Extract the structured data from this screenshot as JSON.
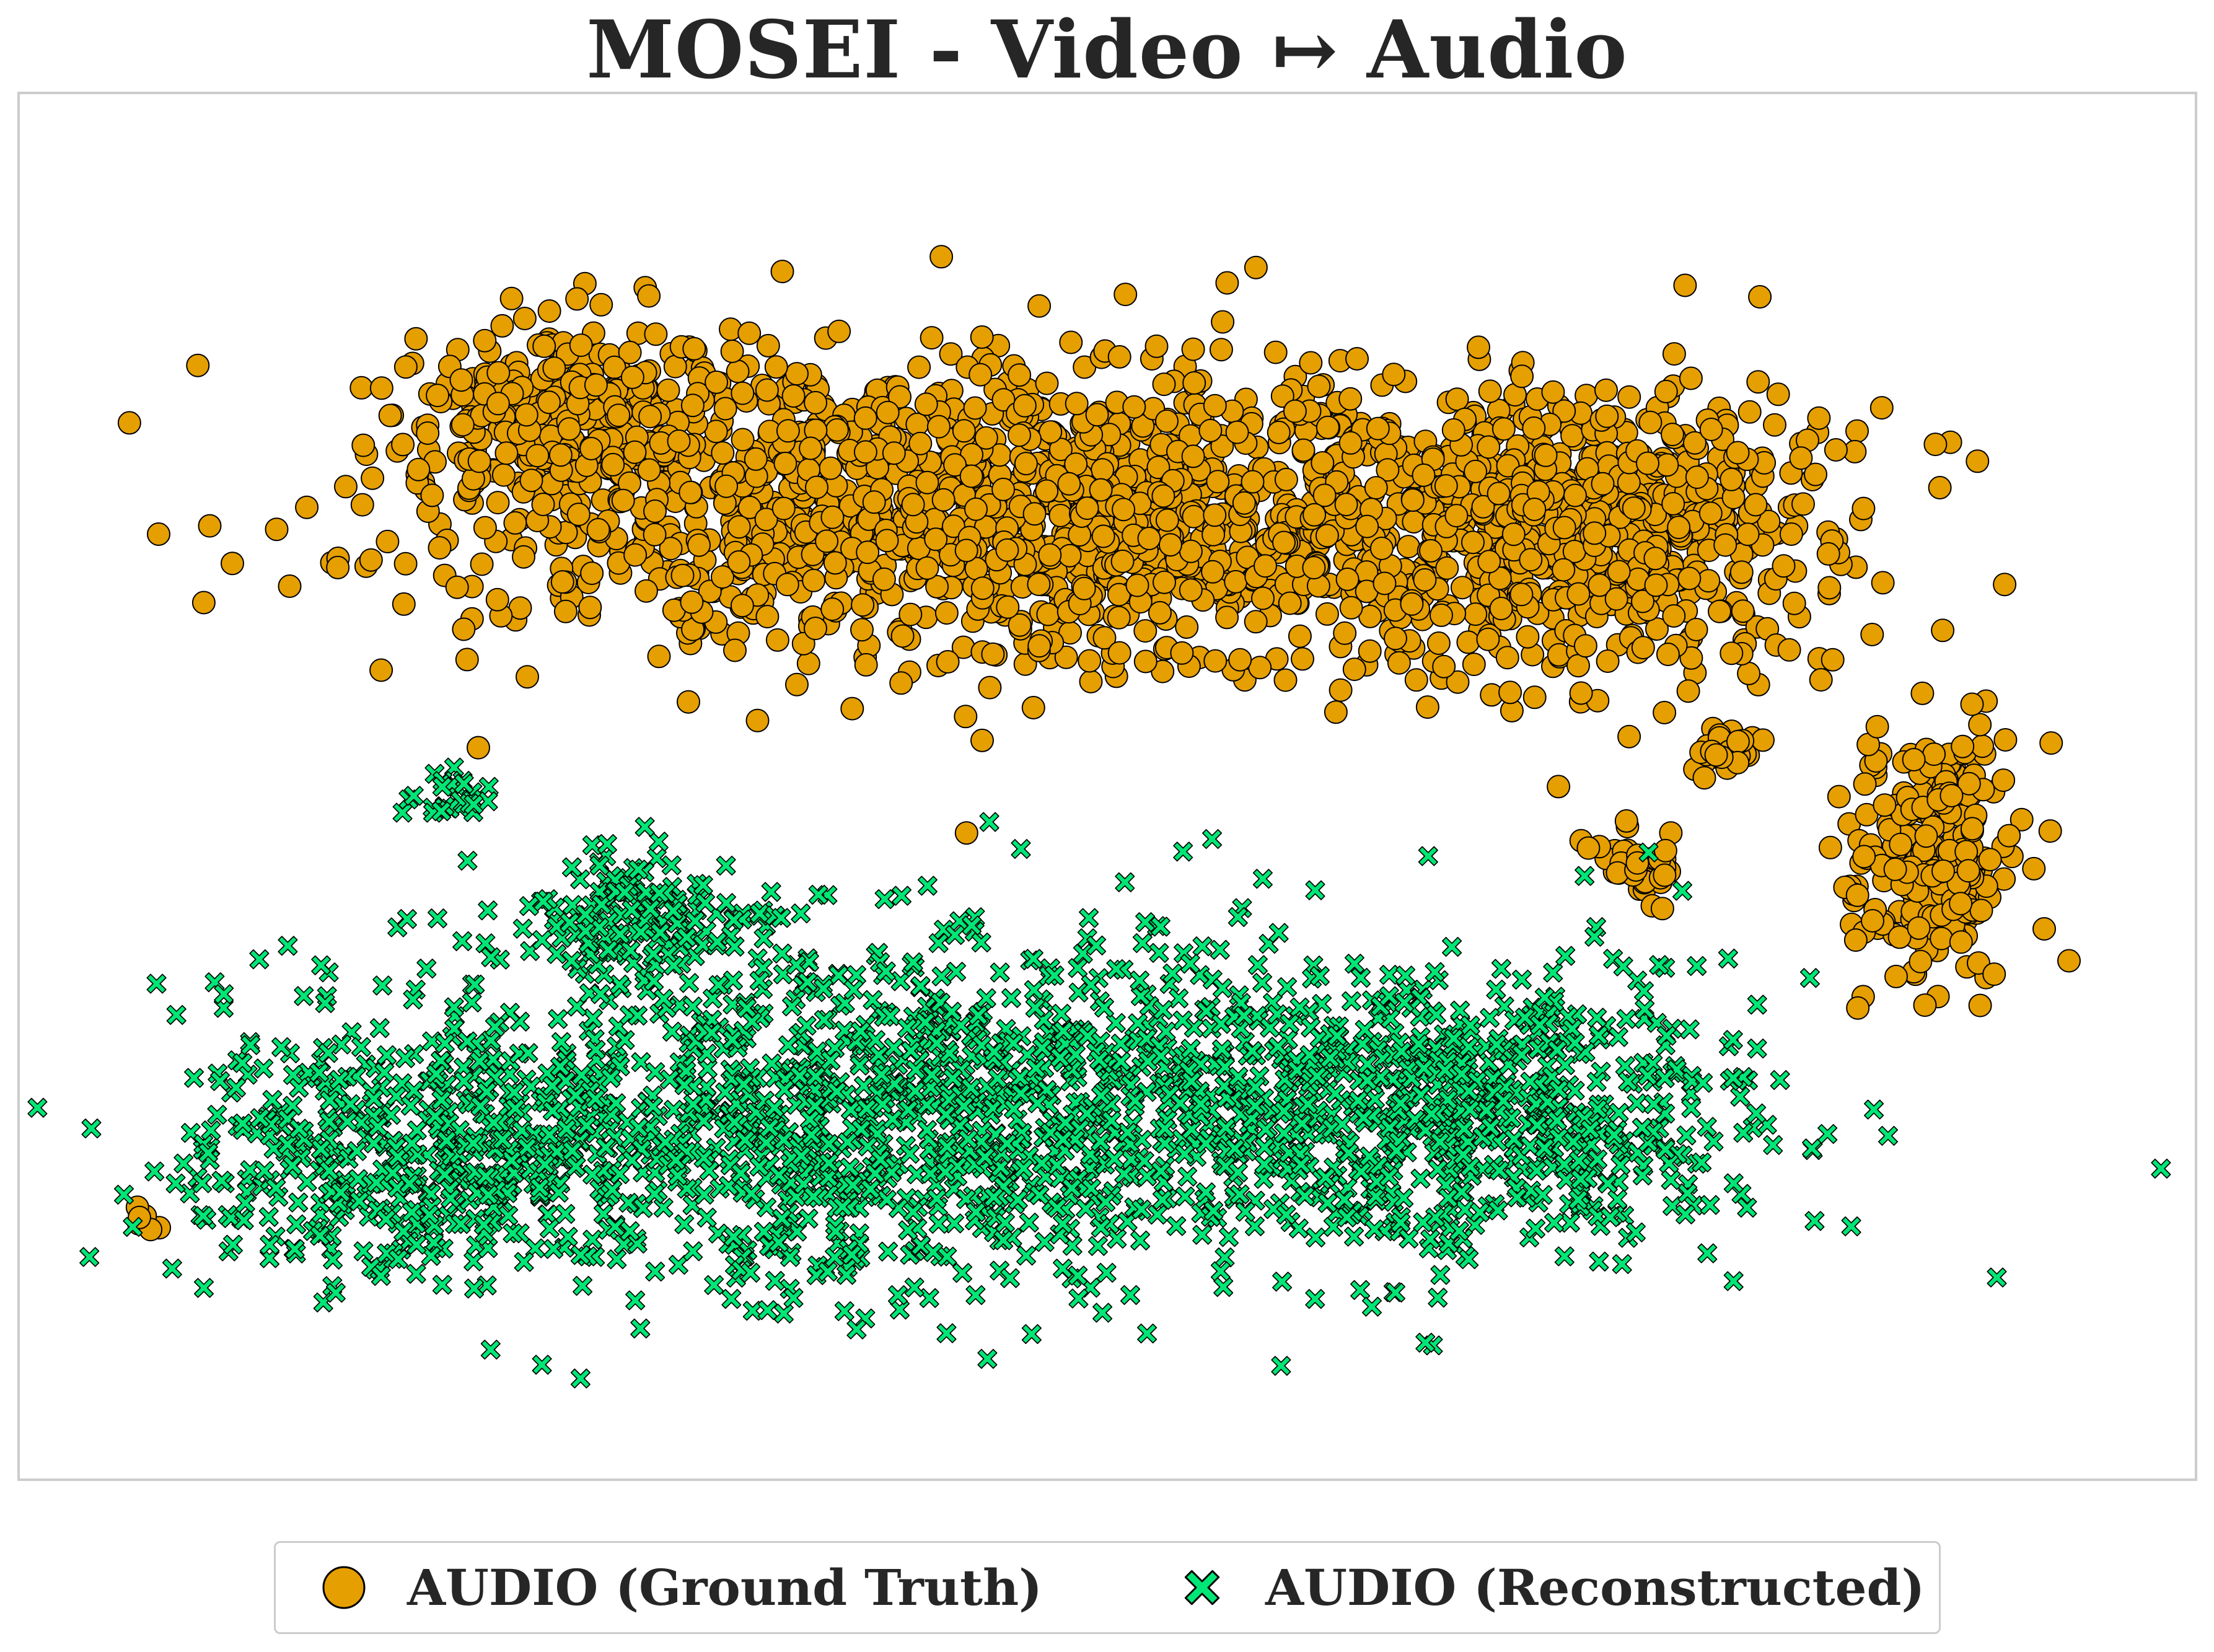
{
  "chart_data": {
    "type": "scatter",
    "title": "MOSEI - Video ↦ Audio",
    "xlabel": "",
    "ylabel": "",
    "xlim": [
      0,
      100
    ],
    "ylim": [
      0,
      100
    ],
    "grid": false,
    "axis_ticks": false,
    "legend_position": "bottom-center",
    "series": [
      {
        "name": "AUDIO (Ground Truth)",
        "marker": "circle",
        "color": "#E69F00",
        "edge_color": "#000000",
        "clusters": [
          {
            "cx": 47.0,
            "cy": 71.0,
            "sx": 14.0,
            "sy": 6.0,
            "n": 1600
          },
          {
            "cx": 74.0,
            "cy": 70.0,
            "sx": 5.5,
            "sy": 5.0,
            "n": 600
          },
          {
            "cx": 24.5,
            "cy": 78.5,
            "sx": 4.5,
            "sy": 3.5,
            "n": 300
          },
          {
            "cx": 90.0,
            "cy": 45.0,
            "sx": 2.0,
            "sy": 4.5,
            "n": 260
          },
          {
            "cx": 75.8,
            "cy": 44.0,
            "sx": 0.9,
            "sy": 1.3,
            "n": 45
          },
          {
            "cx": 80.0,
            "cy": 53.0,
            "sx": 0.8,
            "sy": 1.2,
            "n": 30
          },
          {
            "cx": 3.5,
            "cy": 16.5,
            "sx": 0.4,
            "sy": 1.0,
            "n": 6
          }
        ]
      },
      {
        "name": "AUDIO (Reconstructed)",
        "marker": "x",
        "color": "#00E676",
        "edge_color": "#000000",
        "clusters": [
          {
            "cx": 42.0,
            "cy": 25.0,
            "sx": 15.0,
            "sy": 7.0,
            "n": 1500
          },
          {
            "cx": 68.0,
            "cy": 25.0,
            "sx": 6.5,
            "sy": 5.0,
            "n": 500
          },
          {
            "cx": 16.0,
            "cy": 21.0,
            "sx": 6.0,
            "sy": 4.5,
            "n": 350
          },
          {
            "cx": 27.0,
            "cy": 40.0,
            "sx": 3.0,
            "sy": 3.0,
            "n": 150
          },
          {
            "cx": 18.0,
            "cy": 49.5,
            "sx": 1.0,
            "sy": 1.0,
            "n": 25
          }
        ]
      }
    ]
  }
}
